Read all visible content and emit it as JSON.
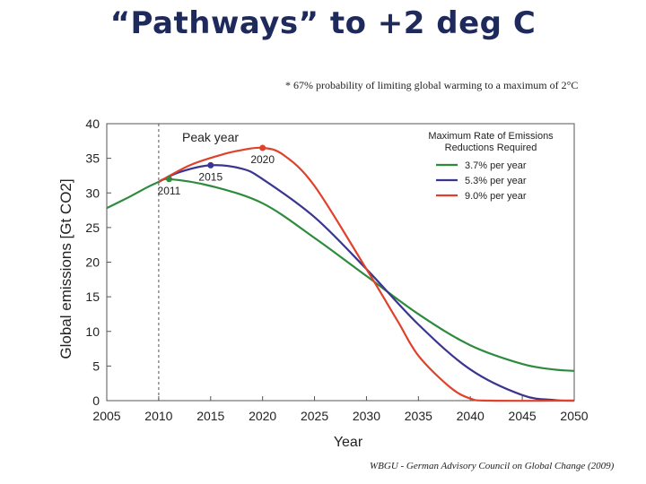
{
  "slide": {
    "title": "“Pathways” to +2 deg C",
    "footnote": "* 67% probability of limiting global warming to a maximum of 2°C",
    "credit": "WBGU - German Advisory Council on Global Change (2009)"
  },
  "chart_data": {
    "type": "line",
    "title": "",
    "xlabel": "Year",
    "ylabel": "Global emissions [Gt CO2]",
    "xlim": [
      2005,
      2050
    ],
    "ylim": [
      0,
      40
    ],
    "xticks": [
      2005,
      2010,
      2015,
      2020,
      2025,
      2030,
      2035,
      2040,
      2045,
      2050
    ],
    "yticks": [
      0,
      5,
      10,
      15,
      20,
      25,
      30,
      35,
      40
    ],
    "grid": false,
    "legend": {
      "position": "top-right",
      "title_line1": "Maximum Rate of Emissions",
      "title_line2": "Reductions Required"
    },
    "annotations": {
      "peak_year_label": "Peak year",
      "peak_year_line_x": 2010
    },
    "history": {
      "color": "#2e8b3e",
      "x": [
        2005,
        2007,
        2009,
        2010
      ],
      "y": [
        27.8,
        29.3,
        30.9,
        31.6
      ]
    },
    "series": [
      {
        "name": "3.7% per year",
        "color": "#2e8b3e",
        "peak_year": 2011,
        "peak_value": 32,
        "peak_label": "2011",
        "x": [
          2010,
          2011,
          2015,
          2020,
          2025,
          2030,
          2035,
          2040,
          2045,
          2048,
          2050
        ],
        "y": [
          31.6,
          32,
          31,
          28.5,
          23.5,
          18,
          12.5,
          8,
          5.3,
          4.5,
          4.3
        ]
      },
      {
        "name": "5.3% per year",
        "color": "#3a3590",
        "peak_year": 2015,
        "peak_value": 34,
        "peak_label": "2015",
        "x": [
          2010,
          2012,
          2015,
          2018,
          2020,
          2025,
          2030,
          2035,
          2040,
          2045,
          2048,
          2050
        ],
        "y": [
          31.6,
          33,
          34,
          33.5,
          32,
          26.5,
          19,
          11,
          4.5,
          0.8,
          0.1,
          0
        ]
      },
      {
        "name": "9.0% per year",
        "color": "#e0412a",
        "peak_year": 2020,
        "peak_value": 36.5,
        "peak_label": "2020",
        "x": [
          2010,
          2013,
          2016,
          2018,
          2020,
          2022,
          2025,
          2030,
          2033,
          2035,
          2038,
          2040,
          2042,
          2050
        ],
        "y": [
          31.6,
          34,
          35.5,
          36.2,
          36.5,
          35.5,
          31,
          19,
          11.5,
          6.5,
          2,
          0.3,
          0,
          0
        ]
      }
    ]
  }
}
